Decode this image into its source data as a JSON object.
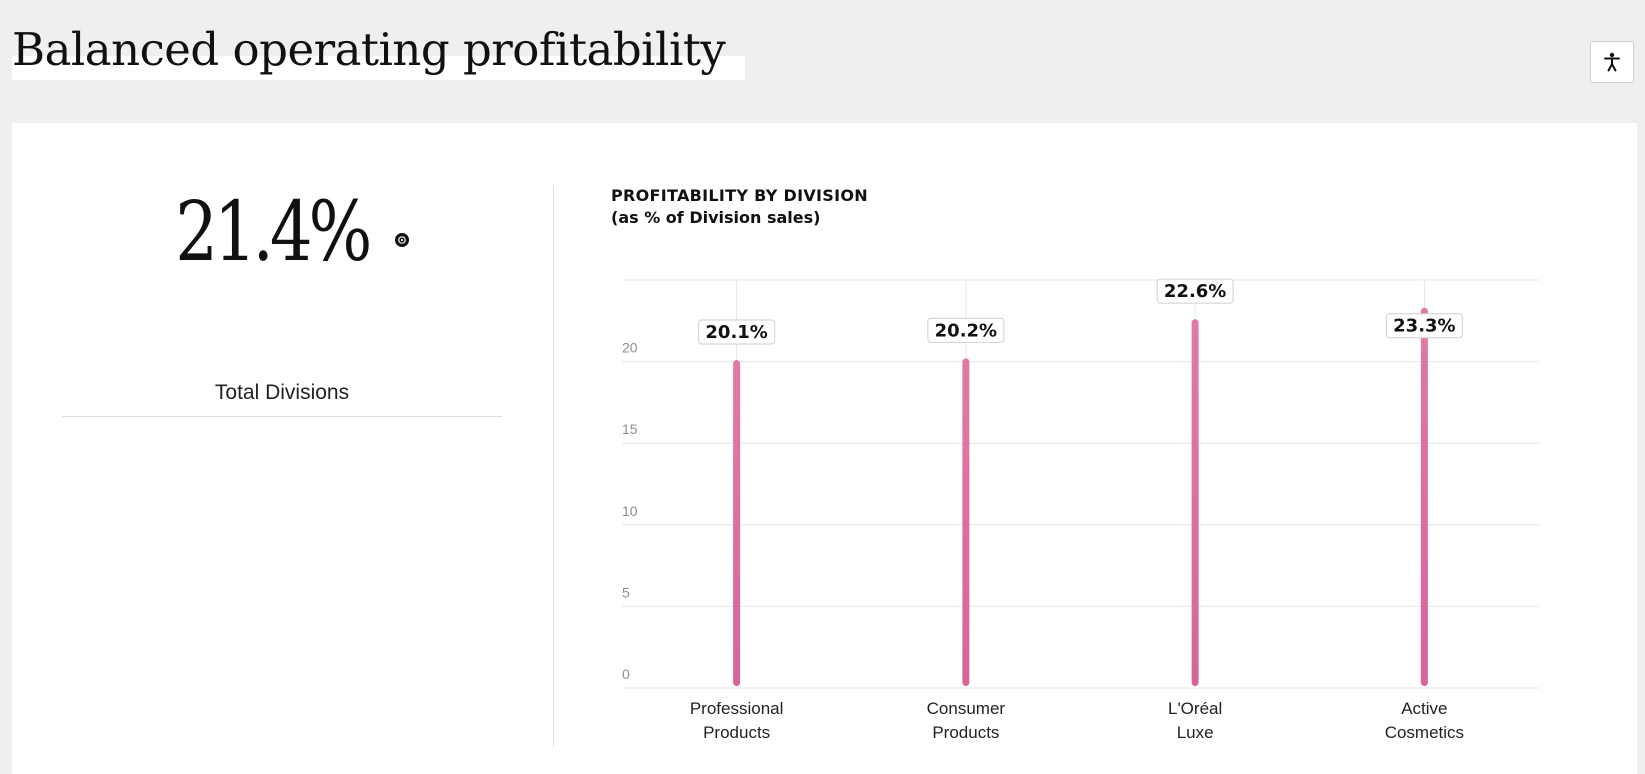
{
  "page": {
    "title": "Balanced operating profitability"
  },
  "accessibility": {
    "icon": "accessibility-person-icon"
  },
  "kpi": {
    "value": "21.4%",
    "label": "Total Divisions",
    "info_icon": "info-dot-icon"
  },
  "chart_data": {
    "type": "bar",
    "title": "PROFITABILITY BY DIVISION",
    "subtitle": "(as % of Division sales)",
    "categories": [
      [
        "Professional",
        "Products"
      ],
      [
        "Consumer",
        "Products"
      ],
      [
        "L'Oréal",
        "Luxe"
      ],
      [
        "Active",
        "Cosmetics"
      ]
    ],
    "values": [
      20.1,
      20.2,
      22.6,
      23.3
    ],
    "data_labels": [
      "20.1%",
      "20.2%",
      "22.6%",
      "23.3%"
    ],
    "yticks": [
      0,
      5,
      10,
      15,
      20
    ],
    "ylim": [
      0,
      25
    ],
    "grid": true,
    "bar_color": "#d8649a",
    "bar_color_top": "#e07aa6",
    "legend": "none"
  }
}
